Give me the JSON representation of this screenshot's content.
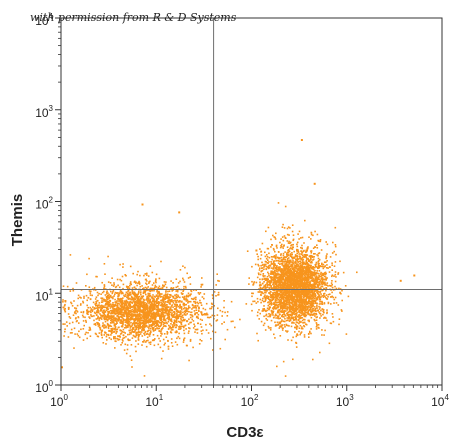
{
  "chart_data": {
    "type": "scatter",
    "title": "",
    "watermark": "with permission from R & D Systems",
    "xlabel": "CD3ε",
    "ylabel": "Themis",
    "x_scale": "log",
    "y_scale": "log",
    "xlim": [
      1,
      10000
    ],
    "ylim": [
      1,
      10000
    ],
    "x_ticks": [
      {
        "base": "10",
        "exp": "0",
        "value": 1
      },
      {
        "base": "10",
        "exp": "1",
        "value": 10
      },
      {
        "base": "10",
        "exp": "2",
        "value": 100
      },
      {
        "base": "10",
        "exp": "3",
        "value": 1000
      },
      {
        "base": "10",
        "exp": "4",
        "value": 10000
      }
    ],
    "y_ticks": [
      {
        "base": "10",
        "exp": "0",
        "value": 1
      },
      {
        "base": "10",
        "exp": "1",
        "value": 10
      },
      {
        "base": "10",
        "exp": "2",
        "value": 100
      },
      {
        "base": "10",
        "exp": "3",
        "value": 1000
      },
      {
        "base": "10",
        "exp": "4",
        "value": 10000
      }
    ],
    "gates": {
      "x": 40,
      "y": 11
    },
    "point_color": "#f7941d",
    "populations": [
      {
        "center_x": 7,
        "center_y": 6.5,
        "spread_x_decades": 0.32,
        "spread_y_decades": 0.12,
        "count": 2600
      },
      {
        "center_x": 280,
        "center_y": 12,
        "spread_x_decades": 0.17,
        "spread_y_decades": 0.16,
        "count": 3400
      }
    ],
    "outliers": [
      {
        "x": 330,
        "y": 480
      },
      {
        "x": 450,
        "y": 160
      },
      {
        "x": 5000,
        "y": 16
      },
      {
        "x": 3600,
        "y": 14
      },
      {
        "x": 17,
        "y": 78
      },
      {
        "x": 7,
        "y": 95
      },
      {
        "x": 1,
        "y": 1.6
      },
      {
        "x": 110,
        "y": 30
      }
    ]
  }
}
